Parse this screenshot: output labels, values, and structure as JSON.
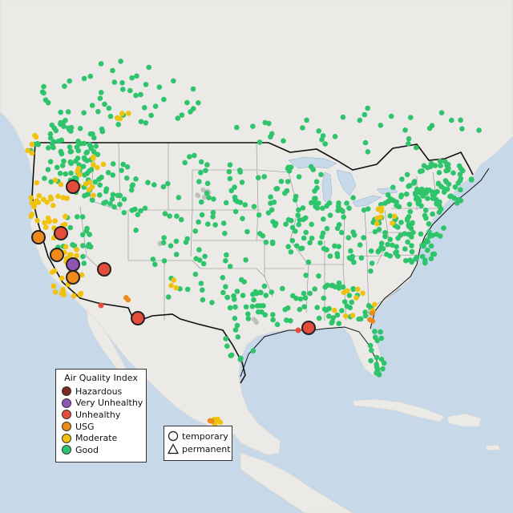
{
  "legend": {
    "title": "Air Quality Index",
    "items": [
      {
        "label": "Hazardous",
        "color": "#7e2a22"
      },
      {
        "label": "Very Unhealthy",
        "color": "#8e55b5"
      },
      {
        "label": "Unhealthy",
        "color": "#e44d3c"
      },
      {
        "label": "USG",
        "color": "#ee8a1c"
      },
      {
        "label": "Moderate",
        "color": "#f0c20e"
      },
      {
        "label": "Good",
        "color": "#2ec46b"
      }
    ]
  },
  "type_legend": {
    "items": [
      {
        "label": "temporary",
        "icon": "circle-icon"
      },
      {
        "label": "permanent",
        "icon": "triangle-icon"
      }
    ]
  },
  "colors": {
    "water": "#c7d9e8",
    "land": "#eceae7",
    "border": "#111111",
    "state_line": "#8c8c8c",
    "offline": "#bfbfbf"
  }
}
